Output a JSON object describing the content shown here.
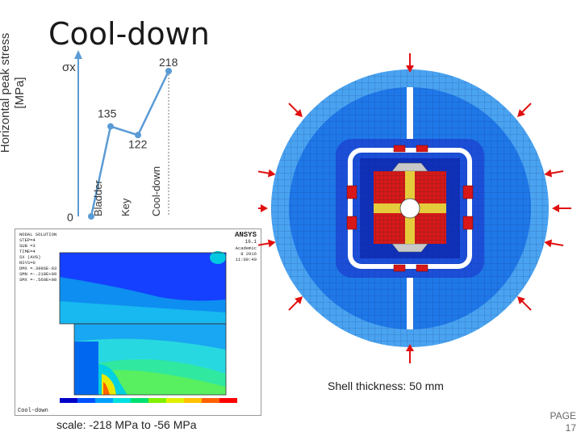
{
  "slide": {
    "title": "Cool-down",
    "shell_caption": "Shell thickness: 50 mm",
    "scale_caption": "scale: -218 MPa to -56 MPa",
    "page_label": "PAGE",
    "page_number": "17"
  },
  "chart_data": {
    "type": "line",
    "ylabel_line1": "Horizontal peak stress",
    "ylabel_line2": "[MPa]",
    "yaxis_symbol": "σx",
    "categories": [
      "",
      "Bladder",
      "Key",
      "Cool-down"
    ],
    "values": [
      0,
      135,
      122,
      218
    ],
    "data_labels": [
      "0",
      "135",
      "122",
      "218"
    ],
    "ylim": [
      0,
      218
    ],
    "grid": false,
    "line_color": "#5b9bd5",
    "marker_color": "#5b9bd5"
  },
  "fem_panel": {
    "software": "ANSYS",
    "version": "16.1",
    "view_name": "Cool-down",
    "header_lines": [
      "NODAL SOLUTION",
      "STEP=4",
      "SUB =3",
      "TIME=4",
      "SX (AVG)",
      "RSYS=0",
      "DMX =.3986E-03",
      "SMN =-.218E+09",
      "SMX =-.560E+08"
    ],
    "right_lines": [
      "Academic",
      "8 2016",
      "11:00:49"
    ],
    "legend_colors": [
      "#0000c8",
      "#0050ff",
      "#00a0ff",
      "#00e0e0",
      "#00e070",
      "#80f000",
      "#e0f000",
      "#ffc000",
      "#ff6000",
      "#ff0000"
    ]
  },
  "magnet": {
    "outer_color": "#4aa3f0",
    "shell_color": "#1f78e8",
    "yoke_color": "#1c4fd8",
    "coil_color": "#d81818",
    "arrow_color": "#e01010"
  }
}
